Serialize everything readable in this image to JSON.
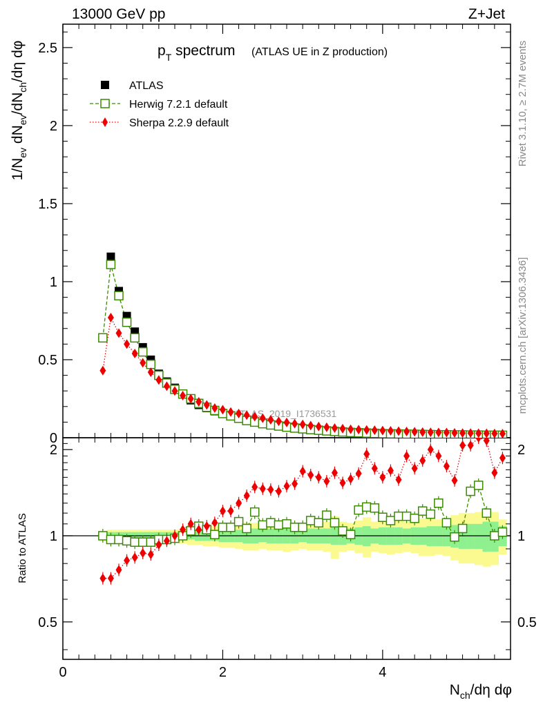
{
  "header": {
    "energy_label": "13000 GeV pp",
    "process_label": "Z+Jet"
  },
  "side_labels": {
    "rivet": "Rivet 3.1.10, ≥ 2.7M events",
    "mcplots": "mcplots.cern.ch [arXiv:1306.3436]"
  },
  "watermark": "ATLAS_2019_I1736531",
  "colors": {
    "atlas": "#000000",
    "herwig": "#3a8a00",
    "sherpa": "#ee0000",
    "band_inner": "#8ef08e",
    "band_outer": "#fafa90"
  },
  "chart_data": [
    {
      "type": "scatter",
      "panel": "main",
      "title_main": "p",
      "title_sub": "T",
      "title_word": " spectrum",
      "title_extra": "(ATLAS UE in Z production)",
      "ylabel": "1/N_ev dN_ev/dN_ch/dη dφ",
      "ylim": [
        0,
        2.65
      ],
      "xlim": [
        0,
        5.6
      ],
      "yticks": [
        0,
        0.5,
        1,
        1.5,
        2,
        2.5
      ],
      "ytick_labels": [
        "0",
        "0.5",
        "1",
        "1.5",
        "2",
        "2.5"
      ],
      "legend": [
        {
          "name": "ATLAS",
          "marker": "square-filled",
          "key": "atlas"
        },
        {
          "name": "Herwig 7.2.1 default",
          "marker": "square-open",
          "key": "herwig"
        },
        {
          "name": "Sherpa 2.2.9 default",
          "marker": "diamond",
          "key": "sherpa"
        }
      ],
      "x": [
        0.5,
        0.6,
        0.7,
        0.8,
        0.9,
        1.0,
        1.1,
        1.2,
        1.3,
        1.4,
        1.5,
        1.6,
        1.7,
        1.8,
        1.9,
        2.0,
        2.1,
        2.2,
        2.3,
        2.4,
        2.5,
        2.6,
        2.7,
        2.8,
        2.9,
        3.0,
        3.1,
        3.2,
        3.3,
        3.4,
        3.5,
        3.6,
        3.7,
        3.8,
        3.9,
        4.0,
        4.1,
        4.2,
        4.3,
        4.4,
        4.5,
        4.6,
        4.7,
        4.8,
        4.9,
        5.0,
        5.1,
        5.2,
        5.3,
        5.4,
        5.5
      ],
      "series": [
        {
          "name": "ATLAS",
          "values": [
            0.64,
            1.16,
            0.94,
            0.78,
            0.68,
            0.58,
            0.5,
            0.41,
            0.36,
            0.32,
            0.28,
            0.24,
            0.21,
            0.19,
            0.17,
            0.155,
            0.14,
            0.125,
            0.11,
            0.1,
            0.09,
            0.082,
            0.075,
            0.068,
            0.062,
            0.057,
            0.052,
            0.048,
            0.044,
            0.04,
            0.037,
            0.034,
            0.032,
            0.03,
            0.028,
            0.026,
            0.025,
            0.024,
            0.023,
            0.022,
            0.021,
            0.02,
            0.019,
            0.019,
            0.018,
            0.018,
            0.017,
            0.017,
            0.016,
            0.016,
            0.016
          ]
        },
        {
          "name": "Herwig 7.2.1 default",
          "values": [
            0.64,
            1.11,
            0.91,
            0.74,
            0.64,
            0.55,
            0.47,
            0.4,
            0.35,
            0.31,
            0.28,
            0.25,
            0.22,
            0.195,
            0.175,
            0.155,
            0.14,
            0.125,
            0.11,
            0.1,
            0.09,
            0.082,
            0.075,
            0.068,
            0.062,
            0.057,
            0.052,
            0.048,
            0.044,
            0.04,
            0.037,
            0.034,
            0.032,
            0.03,
            0.028,
            0.026,
            0.025,
            0.024,
            0.023,
            0.022,
            0.021,
            0.02,
            0.019,
            0.019,
            0.018,
            0.018,
            0.017,
            0.017,
            0.016,
            0.016,
            0.016
          ]
        },
        {
          "name": "Sherpa 2.2.9 default",
          "values": [
            0.43,
            0.77,
            0.67,
            0.6,
            0.54,
            0.48,
            0.42,
            0.37,
            0.33,
            0.3,
            0.27,
            0.25,
            0.23,
            0.21,
            0.19,
            0.18,
            0.165,
            0.155,
            0.145,
            0.135,
            0.125,
            0.115,
            0.105,
            0.098,
            0.09,
            0.085,
            0.078,
            0.072,
            0.067,
            0.062,
            0.058,
            0.054,
            0.052,
            0.05,
            0.048,
            0.046,
            0.044,
            0.042,
            0.04,
            0.038,
            0.036,
            0.035,
            0.034,
            0.033,
            0.031,
            0.03,
            0.03,
            0.029,
            0.028,
            0.027,
            0.026
          ]
        }
      ]
    },
    {
      "type": "scatter",
      "panel": "ratio",
      "ylabel": "Ratio to ATLAS",
      "xlabel": "N_ch/dη dφ",
      "xlim": [
        0,
        5.6
      ],
      "ylim": [
        0.37,
        2.2
      ],
      "xticks": [
        0,
        2,
        4
      ],
      "xtick_labels": [
        "0",
        "2",
        "4"
      ],
      "yticks": [
        0.5,
        1,
        2
      ],
      "ytick_labels": [
        "0.5",
        "1",
        "2"
      ],
      "x": [
        0.5,
        0.6,
        0.7,
        0.8,
        0.9,
        1.0,
        1.1,
        1.2,
        1.3,
        1.4,
        1.5,
        1.6,
        1.7,
        1.8,
        1.9,
        2.0,
        2.1,
        2.2,
        2.3,
        2.4,
        2.5,
        2.6,
        2.7,
        2.8,
        2.9,
        3.0,
        3.1,
        3.2,
        3.3,
        3.4,
        3.5,
        3.6,
        3.7,
        3.8,
        3.9,
        4.0,
        4.1,
        4.2,
        4.3,
        4.4,
        4.5,
        4.6,
        4.7,
        4.8,
        4.9,
        5.0,
        5.1,
        5.2,
        5.3,
        5.4,
        5.5
      ],
      "band_inner": [
        0.02,
        0.03,
        0.03,
        0.03,
        0.03,
        0.03,
        0.03,
        0.03,
        0.03,
        0.03,
        0.03,
        0.03,
        0.04,
        0.04,
        0.04,
        0.05,
        0.05,
        0.05,
        0.06,
        0.06,
        0.05,
        0.06,
        0.06,
        0.06,
        0.06,
        0.05,
        0.06,
        0.06,
        0.06,
        0.07,
        0.07,
        0.06,
        0.07,
        0.08,
        0.06,
        0.07,
        0.07,
        0.07,
        0.06,
        0.07,
        0.07,
        0.08,
        0.08,
        0.08,
        0.09,
        0.1,
        0.1,
        0.1,
        0.12,
        0.12,
        0.08
      ],
      "band_outer": [
        0.04,
        0.05,
        0.05,
        0.05,
        0.05,
        0.05,
        0.05,
        0.05,
        0.05,
        0.05,
        0.06,
        0.07,
        0.07,
        0.08,
        0.08,
        0.09,
        0.09,
        0.1,
        0.11,
        0.11,
        0.1,
        0.11,
        0.11,
        0.12,
        0.11,
        0.1,
        0.11,
        0.11,
        0.12,
        0.17,
        0.12,
        0.11,
        0.13,
        0.16,
        0.12,
        0.13,
        0.14,
        0.13,
        0.12,
        0.13,
        0.15,
        0.15,
        0.14,
        0.15,
        0.18,
        0.2,
        0.2,
        0.21,
        0.22,
        0.21,
        0.14
      ],
      "series": [
        {
          "name": "Herwig 7.2.1 default",
          "values": [
            1.0,
            0.97,
            0.97,
            0.96,
            0.95,
            0.95,
            0.95,
            0.97,
            0.97,
            0.98,
            1.0,
            1.04,
            1.08,
            1.05,
            1.01,
            1.07,
            1.07,
            1.12,
            1.06,
            1.21,
            1.09,
            1.11,
            1.09,
            1.1,
            1.07,
            1.07,
            1.13,
            1.11,
            1.18,
            1.11,
            1.04,
            1.01,
            1.23,
            1.26,
            1.25,
            1.16,
            1.13,
            1.17,
            1.17,
            1.15,
            1.22,
            1.19,
            1.3,
            1.11,
            0.99,
            1.06,
            1.43,
            1.5,
            1.2,
            1.0,
            1.03
          ]
        },
        {
          "name": "Sherpa 2.2.9 default",
          "values": [
            0.71,
            0.71,
            0.76,
            0.82,
            0.84,
            0.87,
            0.86,
            0.93,
            0.96,
            1.0,
            1.05,
            1.1,
            1.05,
            1.08,
            1.11,
            1.22,
            1.22,
            1.3,
            1.38,
            1.48,
            1.46,
            1.45,
            1.43,
            1.49,
            1.52,
            1.68,
            1.63,
            1.6,
            1.55,
            1.66,
            1.53,
            1.58,
            1.65,
            1.93,
            1.72,
            1.6,
            1.69,
            1.57,
            1.9,
            1.72,
            1.83,
            2.0,
            1.9,
            1.75,
            1.56,
            2.07,
            2.07,
            2.2,
            2.15,
            1.66,
            1.87
          ]
        }
      ]
    }
  ]
}
